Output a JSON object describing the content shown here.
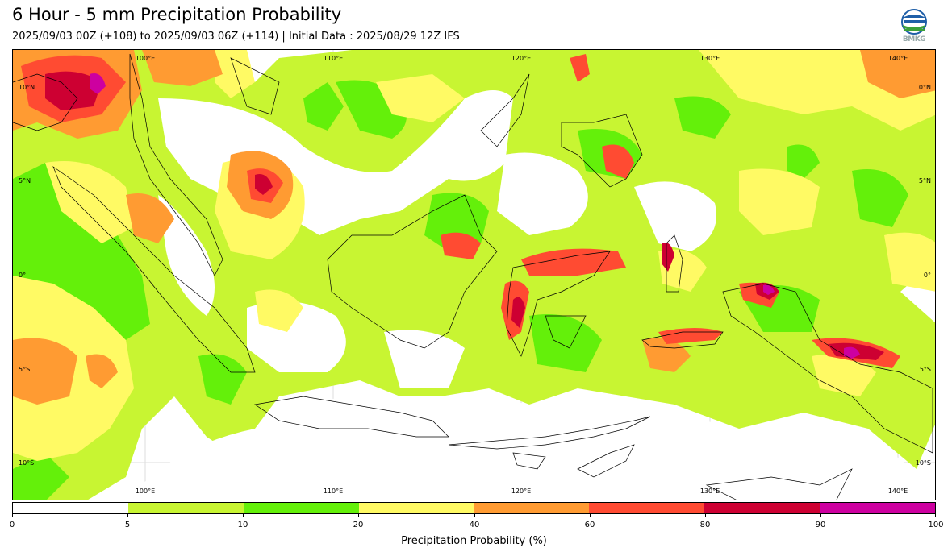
{
  "header": {
    "title": "6 Hour - 5 mm Precipitation Probability",
    "subtitle": "2025/09/03 00Z (+108) to 2025/09/03 06Z (+114) | Initial Data : 2025/08/29 12Z IFS",
    "logo_text": "BMKG"
  },
  "map": {
    "region": "Indonesia",
    "lon_labels": [
      "100°E",
      "110°E",
      "120°E",
      "130°E",
      "140°E"
    ],
    "lat_labels": [
      "10°N",
      "5°N",
      "0°",
      "5°S",
      "10°S"
    ],
    "gridlines": true
  },
  "colorbar": {
    "label": "Precipitation Probability (%)",
    "bounds": [
      "0",
      "5",
      "10",
      "20",
      "40",
      "60",
      "80",
      "90",
      "100"
    ],
    "colors": [
      "#ffffff",
      "#c8f532",
      "#64f00a",
      "#fffa64",
      "#ff9b32",
      "#ff4b32",
      "#cd0032",
      "#cd00a0"
    ]
  }
}
